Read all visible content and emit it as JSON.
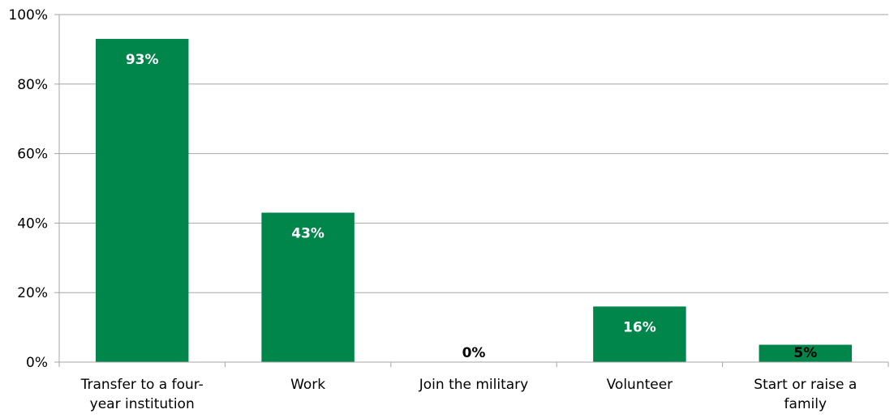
{
  "chart_data": {
    "type": "bar",
    "categories": [
      [
        "Transfer to a four-",
        "year institution"
      ],
      [
        "Work"
      ],
      [
        "Join the military"
      ],
      [
        "Volunteer"
      ],
      [
        "Start or raise a",
        "family"
      ]
    ],
    "values": [
      93,
      43,
      0,
      16,
      5
    ],
    "data_labels": [
      "93%",
      "43%",
      "0%",
      "16%",
      "5%"
    ],
    "y_ticks": [
      "0%",
      "20%",
      "40%",
      "60%",
      "80%",
      "100%"
    ],
    "ylim": [
      0,
      100
    ],
    "grid": true,
    "legend": "none",
    "title": "",
    "xlabel": "",
    "ylabel": "",
    "bar_color": "#00854A",
    "inside_label_color": "#ffffff",
    "outside_label_color": "#000000",
    "grid_color": "#A6A6A6"
  }
}
